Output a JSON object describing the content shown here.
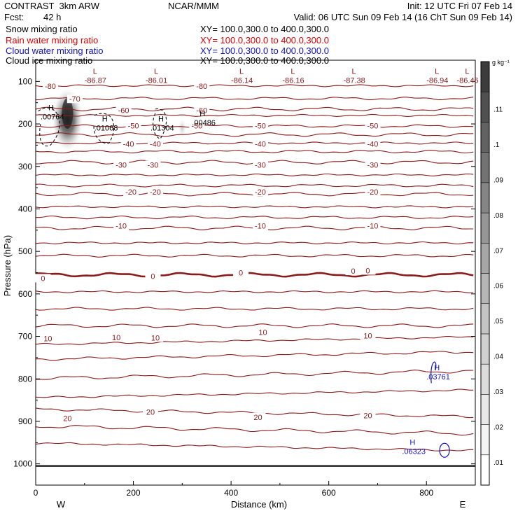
{
  "header": {
    "model": "CONTRAST  3km ARW",
    "center": "NCAR/MMM",
    "init": "Init: 12 UTC Fri 07 Feb 14",
    "fcst_label": "Fcst:",
    "fcst_value": "42 h",
    "valid": "Valid: 06 UTC Sun 09 Feb 14 (16 ChT Sun 09 Feb 14)"
  },
  "fields": [
    {
      "name": "Snow mixing ratio",
      "xy": "XY= 100.0,300.0 to 400.0,300.0",
      "color": "#000000"
    },
    {
      "name": "Rain water mixing ratio",
      "xy": "XY= 100.0,300.0 to 400.0,300.0",
      "color": "#e00000"
    },
    {
      "name": "Cloud water mixing ratio",
      "xy": "XY= 100.0,300.0 to 400.0,300.0",
      "color": "#1010c8"
    },
    {
      "name": "Cloud ice mixing ratio",
      "xy": "XY= 100.0,300.0 to 400.0,300.0",
      "color": "#000000"
    }
  ],
  "chart_data": {
    "type": "cross-section",
    "xlabel": "Distance (km)",
    "ylabel": "Pressure (hPa)",
    "xlim": [
      0,
      900
    ],
    "ylim": [
      1050,
      50
    ],
    "x_ticks": [
      0,
      200,
      400,
      600,
      800
    ],
    "y_ticks": [
      100,
      200,
      300,
      400,
      500,
      600,
      700,
      800,
      900,
      1000
    ],
    "direction_labels": {
      "west": "W",
      "east": "E"
    },
    "colorbar": {
      "unit": "g kg⁻¹",
      "ticks": [
        ".01",
        ".02",
        ".03",
        ".04",
        ".05",
        ".06",
        ".07",
        ".08",
        ".09",
        ".1",
        ".11"
      ],
      "shades": [
        "#ffffff",
        "#f4f4f4",
        "#e8e8e8",
        "#dcdcdc",
        "#d0d0d0",
        "#c4c4c4",
        "#b6b6b6",
        "#a6a6a6",
        "#969696",
        "#858585",
        "#737373",
        "#626262",
        "#505050",
        "#3c3c3c"
      ]
    },
    "temperature_contours": {
      "color": "#8b1a1a",
      "levels": [
        {
          "p": 110,
          "label": "-80"
        },
        {
          "p": 140,
          "label": ""
        },
        {
          "p": 165,
          "label": "-70"
        },
        {
          "p": 180,
          "label": "-60"
        },
        {
          "p": 205,
          "label": "-50"
        },
        {
          "p": 225,
          "label": ""
        },
        {
          "p": 245,
          "label": "-40"
        },
        {
          "p": 265,
          "label": ""
        },
        {
          "p": 290,
          "label": "-30"
        },
        {
          "p": 320,
          "label": ""
        },
        {
          "p": 345,
          "label": "-20"
        },
        {
          "p": 365,
          "label": ""
        },
        {
          "p": 395,
          "label": ""
        },
        {
          "p": 420,
          "label": ""
        },
        {
          "p": 445,
          "label": "-10"
        },
        {
          "p": 480,
          "label": ""
        },
        {
          "p": 510,
          "label": ""
        },
        {
          "p": 555,
          "label": "0"
        },
        {
          "p": 595,
          "label": ""
        },
        {
          "p": 635,
          "label": ""
        },
        {
          "p": 675,
          "label": "10"
        },
        {
          "p": 710,
          "label": ""
        },
        {
          "p": 745,
          "label": ""
        },
        {
          "p": 790,
          "label": ""
        },
        {
          "p": 835,
          "label": ""
        },
        {
          "p": 880,
          "label": "20"
        },
        {
          "p": 920,
          "label": ""
        },
        {
          "p": 960,
          "label": ""
        }
      ],
      "labels": [
        {
          "x": 30,
          "p": 111,
          "text": "-80"
        },
        {
          "x": 340,
          "p": 111,
          "text": "-80"
        },
        {
          "x": 80,
          "p": 141,
          "text": "-70"
        },
        {
          "x": 180,
          "p": 168,
          "text": "-60"
        },
        {
          "x": 340,
          "p": 168,
          "text": "-60"
        },
        {
          "x": 200,
          "p": 204,
          "text": "-50"
        },
        {
          "x": 330,
          "p": 204,
          "text": "-50"
        },
        {
          "x": 460,
          "p": 204,
          "text": "-50"
        },
        {
          "x": 690,
          "p": 204,
          "text": "-50"
        },
        {
          "x": 190,
          "p": 247,
          "text": "-40"
        },
        {
          "x": 245,
          "p": 247,
          "text": "-40"
        },
        {
          "x": 460,
          "p": 247,
          "text": "-40"
        },
        {
          "x": 690,
          "p": 247,
          "text": "-40"
        },
        {
          "x": 175,
          "p": 296,
          "text": "-30"
        },
        {
          "x": 240,
          "p": 296,
          "text": "-30"
        },
        {
          "x": 460,
          "p": 296,
          "text": "-30"
        },
        {
          "x": 690,
          "p": 296,
          "text": "-30"
        },
        {
          "x": 195,
          "p": 360,
          "text": "-20"
        },
        {
          "x": 245,
          "p": 360,
          "text": "-20"
        },
        {
          "x": 460,
          "p": 360,
          "text": "-20"
        },
        {
          "x": 690,
          "p": 360,
          "text": "-20"
        },
        {
          "x": 175,
          "p": 440,
          "text": "-10"
        },
        {
          "x": 460,
          "p": 440,
          "text": "-10"
        },
        {
          "x": 690,
          "p": 440,
          "text": "-10"
        },
        {
          "x": 15,
          "p": 563,
          "text": "0"
        },
        {
          "x": 240,
          "p": 558,
          "text": "0"
        },
        {
          "x": 420,
          "p": 550,
          "text": "0"
        },
        {
          "x": 650,
          "p": 546,
          "text": "0"
        },
        {
          "x": 680,
          "p": 545,
          "text": "0"
        },
        {
          "x": 25,
          "p": 705,
          "text": "10"
        },
        {
          "x": 165,
          "p": 702,
          "text": "10"
        },
        {
          "x": 245,
          "p": 703,
          "text": "10"
        },
        {
          "x": 465,
          "p": 690,
          "text": "10"
        },
        {
          "x": 680,
          "p": 698,
          "text": "10"
        },
        {
          "x": 65,
          "p": 893,
          "text": "20"
        },
        {
          "x": 235,
          "p": 878,
          "text": "20"
        },
        {
          "x": 455,
          "p": 890,
          "text": "20"
        },
        {
          "x": 680,
          "p": 886,
          "text": "20"
        }
      ]
    },
    "extrema": [
      {
        "kind": "L",
        "x": 100,
        "p": 82,
        "value": "-86.87",
        "color": "#8b1a1a"
      },
      {
        "kind": "L",
        "x": 225,
        "p": 82,
        "value": "-86.01",
        "color": "#8b1a1a"
      },
      {
        "kind": "L",
        "x": 400,
        "p": 82,
        "value": "-86.14",
        "color": "#8b1a1a"
      },
      {
        "kind": "L",
        "x": 505,
        "p": 82,
        "value": "-86.16",
        "color": "#8b1a1a"
      },
      {
        "kind": "L",
        "x": 630,
        "p": 82,
        "value": "-87.38",
        "color": "#8b1a1a"
      },
      {
        "kind": "L",
        "x": 800,
        "p": 82,
        "value": "-86.94",
        "color": "#8b1a1a"
      },
      {
        "kind": "L",
        "x": 862,
        "p": 82,
        "value": "-86.46",
        "color": "#8b1a1a"
      },
      {
        "kind": "H",
        "x": 10,
        "p": 168,
        "value": ".00764",
        "color": "#000000"
      },
      {
        "kind": "H",
        "x": 120,
        "p": 194,
        "value": ".01068",
        "color": "#000000"
      },
      {
        "kind": "H",
        "x": 235,
        "p": 194,
        "value": ".01304",
        "color": "#000000"
      },
      {
        "kind": "H",
        "x": 320,
        "p": 182,
        "value": ".00486",
        "color": "#000000"
      },
      {
        "kind": "H",
        "x": 800,
        "p": 780,
        "value": ".03761",
        "color": "#1010c8"
      },
      {
        "kind": "H",
        "x": 750,
        "p": 955,
        "value": ".06323",
        "color": "#1010c8"
      }
    ],
    "snow_max": {
      "x": 65,
      "p": 190,
      "value": 0.12
    }
  }
}
